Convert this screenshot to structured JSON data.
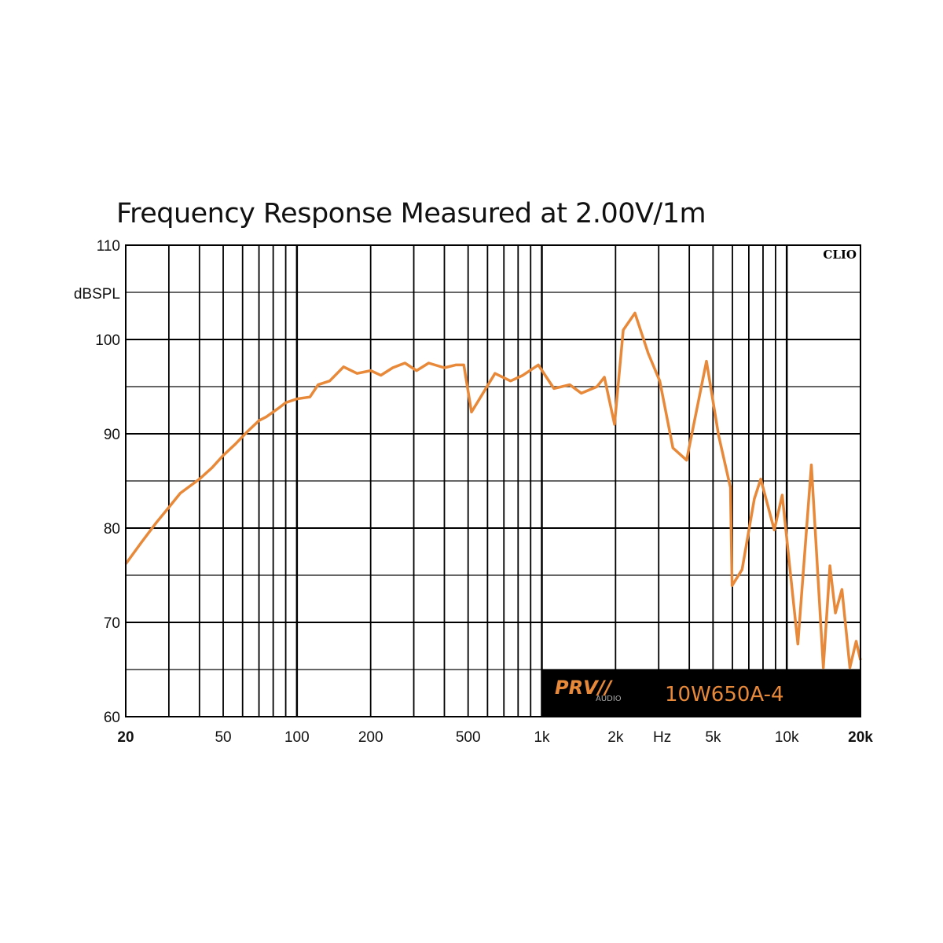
{
  "chart_data": {
    "type": "line",
    "title": "Frequency Response Measured at 2.00V/1m",
    "ylabel": "dBSPL",
    "xlabel": "Hz",
    "xscale": "log",
    "xlim": [
      20,
      20000
    ],
    "ylim": [
      60,
      110
    ],
    "grid": true,
    "watermark": "CLIO",
    "brand": {
      "logo": "PRV AUDIO",
      "model": "10W650A-4"
    },
    "line_color": "#e8893a",
    "y_ticks": [
      "110",
      "100",
      "90",
      "80",
      "70",
      "60"
    ],
    "x_ticks": [
      {
        "v": 20,
        "label": "20"
      },
      {
        "v": 50,
        "label": "50"
      },
      {
        "v": 100,
        "label": "100"
      },
      {
        "v": 200,
        "label": "200"
      },
      {
        "v": 500,
        "label": "500"
      },
      {
        "v": 1000,
        "label": "1k"
      },
      {
        "v": 2000,
        "label": "2k"
      },
      {
        "v": 5000,
        "label": "5k"
      },
      {
        "v": 10000,
        "label": "10k"
      },
      {
        "v": 20000,
        "label": "20k"
      }
    ],
    "series": [
      {
        "x": [
          20,
          23.2,
          26.7,
          30,
          33.4,
          40,
          45,
          50,
          56,
          62.6,
          70,
          75,
          84,
          90,
          100,
          113,
          122,
          136,
          155,
          176,
          200,
          220,
          246,
          276,
          308,
          345,
          400,
          445,
          480,
          516,
          575,
          644,
          745,
          836,
          967,
          1120,
          1300,
          1450,
          1680,
          1800,
          1980,
          2150,
          2400,
          2720,
          3030,
          3430,
          3900,
          4700,
          5270,
          5890,
          5980,
          6570,
          7370,
          7830,
          8890,
          9580,
          11100,
          12600,
          14100,
          15000,
          15800,
          16800,
          18100,
          19200,
          20000
        ],
        "y": [
          76.2,
          78.5,
          80.6,
          82.2,
          83.7,
          85.2,
          86.4,
          87.7,
          88.9,
          90.2,
          91.4,
          91.8,
          92.7,
          93.3,
          93.7,
          93.9,
          95.2,
          95.6,
          97.1,
          96.4,
          96.7,
          96.2,
          97,
          97.5,
          96.7,
          97.5,
          97,
          97.3,
          97.3,
          92.3,
          94.3,
          96.4,
          95.6,
          96.2,
          97.3,
          94.8,
          95.2,
          94.3,
          95,
          96,
          91,
          101,
          102.8,
          98.5,
          95.6,
          88.5,
          87.2,
          97.7,
          89.8,
          84.3,
          73.9,
          75.6,
          83.1,
          85.2,
          79.8,
          83.5,
          67.7,
          86.7,
          65.2,
          76,
          71,
          73.5,
          65.2,
          68,
          66
        ]
      }
    ]
  }
}
